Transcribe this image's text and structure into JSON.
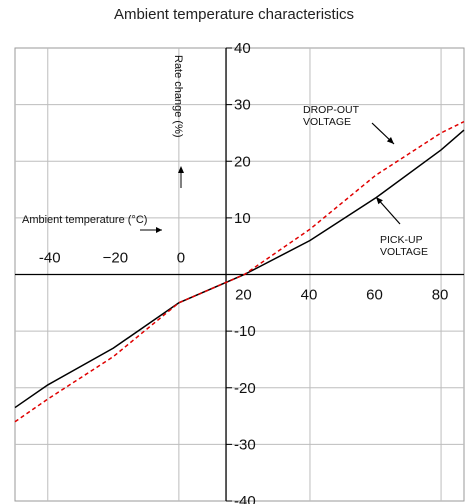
{
  "chart_data": {
    "type": "line",
    "title": "Ambient temperature  characteristics",
    "xlabel": "Ambient temperature (°C)",
    "ylabel": "Rate change (%)",
    "xlim": [
      -50,
      87
    ],
    "ylim": [
      -40,
      40
    ],
    "x_tick_labels_left": [
      "-40",
      "−20",
      "0"
    ],
    "x_tick_labels_right": [
      "20",
      "40",
      "60",
      "80"
    ],
    "x_ticks_left": [
      -40,
      -20,
      0
    ],
    "x_ticks_right": [
      20,
      40,
      60,
      80
    ],
    "y_ticks": [
      40,
      30,
      20,
      10,
      -10,
      -20,
      -30,
      -40
    ],
    "y_tick_labels": [
      "40",
      "30",
      "20",
      "10",
      "-10",
      "-20",
      "-30",
      "-40"
    ],
    "grid_x": [
      -40,
      0,
      40,
      80
    ],
    "grid_y": [
      30,
      20,
      10,
      -10,
      -20,
      -30
    ],
    "grid": true,
    "series": [
      {
        "name": "PICK-UP VOLTAGE",
        "color": "#000000",
        "style": "solid",
        "x": [
          -50,
          -40,
          -20,
          0,
          20,
          40,
          60,
          80,
          87
        ],
        "y": [
          -23.5,
          -19.5,
          -13,
          -5,
          0,
          6,
          13.5,
          22,
          25.5
        ]
      },
      {
        "name": "DROP-OUT VOLTAGE",
        "color": "#e00000",
        "style": "dashed",
        "x": [
          -50,
          -40,
          -20,
          0,
          20,
          40,
          60,
          80,
          87
        ],
        "y": [
          -26,
          -22,
          -14.5,
          -5,
          0,
          8,
          17.5,
          25,
          27
        ]
      }
    ],
    "annotations": [
      {
        "lines": [
          "DROP-OUT",
          "VOLTAGE"
        ],
        "series": "DROP-OUT VOLTAGE"
      },
      {
        "lines": [
          "PICK-UP",
          "VOLTAGE"
        ],
        "series": "PICK-UP VOLTAGE"
      }
    ]
  }
}
